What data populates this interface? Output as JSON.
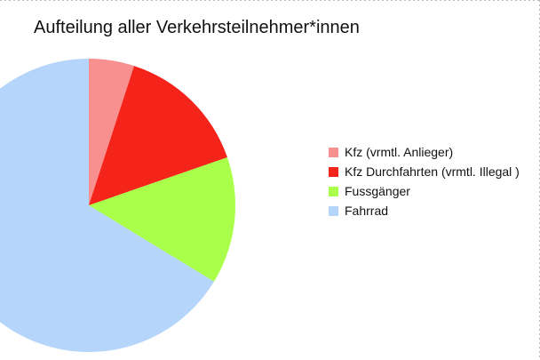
{
  "chart_data": {
    "type": "pie",
    "title": "Aufteilung aller Verkehrsteilnehmer*innen",
    "legend_position": "right",
    "start_angle": "top",
    "direction": "clockwise",
    "slices": [
      {
        "label": "Kfz (vrmtl. Anlieger)",
        "value": 5,
        "color": "#f7908f"
      },
      {
        "label": "Kfz Durchfahrten (vrmtl. Illegal )",
        "value": 14.7,
        "color": "#f5241b"
      },
      {
        "label": "Fussgänger",
        "value": 14,
        "color": "#a9ff4a"
      },
      {
        "label": "Fahrrad",
        "value": 66.3,
        "color": "#b5d5fa"
      }
    ]
  }
}
